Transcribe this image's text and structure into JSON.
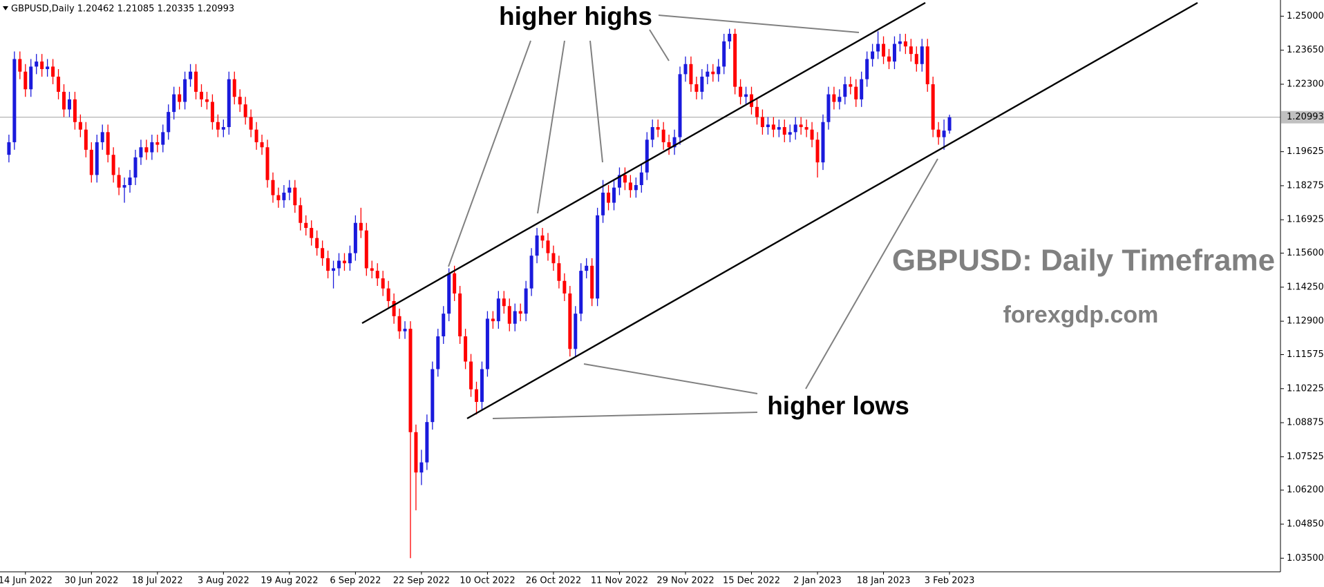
{
  "chart_data": {
    "type": "candlestick",
    "title": "GBPUSD,Daily 1.20462 1.21085 1.20335 1.20993",
    "annotations": [
      "higher highs",
      "higher lows",
      "GBPUSD: Daily Timeframe",
      "forexgdp.com"
    ],
    "bull_color": "#1a1adc",
    "bear_color": "#ff0000",
    "price_line": {
      "value": 1.20993,
      "label": "1.20993"
    },
    "ylim": [
      1.0296,
      1.2554
    ],
    "yticks": [
      {
        "value": 1.25,
        "label": "1.25000"
      },
      {
        "value": 1.2365,
        "label": "1.23650"
      },
      {
        "value": 1.223,
        "label": "1.22300"
      },
      {
        "value": 1.19625,
        "label": "1.19625"
      },
      {
        "value": 1.18275,
        "label": "1.18275"
      },
      {
        "value": 1.16925,
        "label": "1.16925"
      },
      {
        "value": 1.156,
        "label": "1.15600"
      },
      {
        "value": 1.1425,
        "label": "1.14250"
      },
      {
        "value": 1.129,
        "label": "1.12900"
      },
      {
        "value": 1.11575,
        "label": "1.11575"
      },
      {
        "value": 1.10225,
        "label": "1.10225"
      },
      {
        "value": 1.08875,
        "label": "1.08875"
      },
      {
        "value": 1.07525,
        "label": "1.07525"
      },
      {
        "value": 1.062,
        "label": "1.06200"
      },
      {
        "value": 1.0485,
        "label": "1.04850"
      },
      {
        "value": 1.035,
        "label": "1.03500"
      }
    ],
    "categories": [
      null,
      null,
      null,
      "14 Jun 2022",
      null,
      null,
      null,
      null,
      null,
      null,
      null,
      null,
      null,
      null,
      null,
      "30 Jun 2022",
      null,
      null,
      null,
      null,
      null,
      null,
      null,
      null,
      null,
      null,
      null,
      "18 Jul 2022",
      null,
      null,
      null,
      null,
      null,
      null,
      null,
      null,
      null,
      null,
      null,
      "3 Aug 2022",
      null,
      null,
      null,
      null,
      null,
      null,
      null,
      null,
      null,
      null,
      null,
      "19 Aug 2022",
      null,
      null,
      null,
      null,
      null,
      null,
      null,
      null,
      null,
      null,
      null,
      "6 Sep 2022",
      null,
      null,
      null,
      null,
      null,
      null,
      null,
      null,
      null,
      null,
      null,
      "22 Sep 2022",
      null,
      null,
      null,
      null,
      null,
      null,
      null,
      null,
      null,
      null,
      null,
      "10 Oct 2022",
      null,
      null,
      null,
      null,
      null,
      null,
      null,
      null,
      null,
      null,
      null,
      "26 Oct 2022",
      null,
      null,
      null,
      null,
      null,
      null,
      null,
      null,
      null,
      null,
      null,
      "11 Nov 2022",
      null,
      null,
      null,
      null,
      null,
      null,
      null,
      null,
      null,
      null,
      null,
      "29 Nov 2022",
      null,
      null,
      null,
      null,
      null,
      null,
      null,
      null,
      null,
      null,
      null,
      "15 Dec 2022",
      null,
      null,
      null,
      null,
      null,
      null,
      null,
      null,
      null,
      null,
      null,
      "2 Jan 2023",
      null,
      null,
      null,
      null,
      null,
      null,
      null,
      null,
      null,
      null,
      null,
      "18 Jan 2023",
      null,
      null,
      null,
      null,
      null,
      null,
      null,
      null,
      null,
      null,
      null,
      "3 Feb 2023"
    ],
    "candles": [
      [
        1.195,
        1.203,
        1.192,
        1.2
      ],
      [
        1.2,
        1.236,
        1.197,
        1.233
      ],
      [
        1.233,
        1.236,
        1.225,
        1.228
      ],
      [
        1.228,
        1.231,
        1.218,
        1.221
      ],
      [
        1.221,
        1.233,
        1.218,
        1.23
      ],
      [
        1.23,
        1.235,
        1.227,
        1.232
      ],
      [
        1.232,
        1.235,
        1.226,
        1.229
      ],
      [
        1.229,
        1.233,
        1.226,
        1.23
      ],
      [
        1.23,
        1.233,
        1.223,
        1.226
      ],
      [
        1.226,
        1.229,
        1.217,
        1.22
      ],
      [
        1.22,
        1.223,
        1.21,
        1.213
      ],
      [
        1.213,
        1.22,
        1.21,
        1.217
      ],
      [
        1.217,
        1.22,
        1.205,
        1.208
      ],
      [
        1.208,
        1.211,
        1.202,
        1.205
      ],
      [
        1.205,
        1.208,
        1.194,
        1.197
      ],
      [
        1.197,
        1.2,
        1.184,
        1.187
      ],
      [
        1.187,
        1.203,
        1.184,
        1.2
      ],
      [
        1.2,
        1.207,
        1.197,
        1.204
      ],
      [
        1.204,
        1.207,
        1.192,
        1.195
      ],
      [
        1.195,
        1.198,
        1.184,
        1.187
      ],
      [
        1.187,
        1.19,
        1.179,
        1.182
      ],
      [
        1.182,
        1.186,
        1.176,
        1.183
      ],
      [
        1.183,
        1.189,
        1.18,
        1.186
      ],
      [
        1.186,
        1.197,
        1.183,
        1.194
      ],
      [
        1.194,
        1.201,
        1.191,
        1.198
      ],
      [
        1.198,
        1.201,
        1.193,
        1.196
      ],
      [
        1.196,
        1.203,
        1.193,
        1.2
      ],
      [
        1.2,
        1.203,
        1.196,
        1.199
      ],
      [
        1.199,
        1.207,
        1.196,
        1.204
      ],
      [
        1.204,
        1.215,
        1.201,
        1.212
      ],
      [
        1.212,
        1.222,
        1.209,
        1.219
      ],
      [
        1.219,
        1.222,
        1.213,
        1.216
      ],
      [
        1.216,
        1.228,
        1.213,
        1.225
      ],
      [
        1.225,
        1.231,
        1.222,
        1.228
      ],
      [
        1.228,
        1.231,
        1.217,
        1.22
      ],
      [
        1.22,
        1.223,
        1.214,
        1.217
      ],
      [
        1.217,
        1.22,
        1.213,
        1.216
      ],
      [
        1.216,
        1.219,
        1.205,
        1.208
      ],
      [
        1.208,
        1.211,
        1.202,
        1.205
      ],
      [
        1.205,
        1.209,
        1.202,
        1.206
      ],
      [
        1.206,
        1.228,
        1.203,
        1.225
      ],
      [
        1.225,
        1.228,
        1.215,
        1.218
      ],
      [
        1.218,
        1.221,
        1.212,
        1.215
      ],
      [
        1.215,
        1.218,
        1.207,
        1.21
      ],
      [
        1.21,
        1.213,
        1.202,
        1.205
      ],
      [
        1.205,
        1.208,
        1.197,
        1.2
      ],
      [
        1.2,
        1.203,
        1.195,
        1.198
      ],
      [
        1.198,
        1.201,
        1.182,
        1.185
      ],
      [
        1.185,
        1.188,
        1.176,
        1.179
      ],
      [
        1.179,
        1.182,
        1.174,
        1.177
      ],
      [
        1.177,
        1.183,
        1.174,
        1.18
      ],
      [
        1.18,
        1.185,
        1.177,
        1.182
      ],
      [
        1.182,
        1.185,
        1.172,
        1.175
      ],
      [
        1.175,
        1.178,
        1.165,
        1.168
      ],
      [
        1.168,
        1.171,
        1.163,
        1.166
      ],
      [
        1.166,
        1.169,
        1.159,
        1.162
      ],
      [
        1.162,
        1.165,
        1.155,
        1.158
      ],
      [
        1.158,
        1.161,
        1.151,
        1.154
      ],
      [
        1.154,
        1.157,
        1.146,
        1.149
      ],
      [
        1.149,
        1.153,
        1.142,
        1.15
      ],
      [
        1.15,
        1.156,
        1.147,
        1.153
      ],
      [
        1.153,
        1.156,
        1.149,
        1.152
      ],
      [
        1.152,
        1.159,
        1.149,
        1.156
      ],
      [
        1.156,
        1.171,
        1.153,
        1.168
      ],
      [
        1.168,
        1.174,
        1.162,
        1.165
      ],
      [
        1.165,
        1.168,
        1.147,
        1.15
      ],
      [
        1.15,
        1.153,
        1.146,
        1.149
      ],
      [
        1.149,
        1.152,
        1.143,
        1.146
      ],
      [
        1.146,
        1.149,
        1.139,
        1.142
      ],
      [
        1.142,
        1.145,
        1.134,
        1.137
      ],
      [
        1.137,
        1.14,
        1.128,
        1.131
      ],
      [
        1.131,
        1.134,
        1.122,
        1.125
      ],
      [
        1.125,
        1.129,
        1.122,
        1.126
      ],
      [
        1.126,
        1.129,
        1.035,
        1.085
      ],
      [
        1.085,
        1.088,
        1.054,
        1.069
      ],
      [
        1.069,
        1.078,
        1.064,
        1.073
      ],
      [
        1.073,
        1.092,
        1.07,
        1.089
      ],
      [
        1.089,
        1.113,
        1.086,
        1.11
      ],
      [
        1.11,
        1.126,
        1.107,
        1.123
      ],
      [
        1.123,
        1.135,
        1.12,
        1.132
      ],
      [
        1.132,
        1.15,
        1.129,
        1.148
      ],
      [
        1.148,
        1.151,
        1.137,
        1.14
      ],
      [
        1.14,
        1.143,
        1.12,
        1.123
      ],
      [
        1.123,
        1.126,
        1.11,
        1.113
      ],
      [
        1.113,
        1.116,
        1.099,
        1.102
      ],
      [
        1.102,
        1.105,
        1.092,
        1.097
      ],
      [
        1.097,
        1.113,
        1.094,
        1.11
      ],
      [
        1.11,
        1.133,
        1.107,
        1.13
      ],
      [
        1.13,
        1.133,
        1.126,
        1.129
      ],
      [
        1.129,
        1.141,
        1.126,
        1.138
      ],
      [
        1.138,
        1.141,
        1.132,
        1.135
      ],
      [
        1.135,
        1.138,
        1.125,
        1.128
      ],
      [
        1.128,
        1.136,
        1.125,
        1.133
      ],
      [
        1.133,
        1.136,
        1.129,
        1.132
      ],
      [
        1.132,
        1.145,
        1.129,
        1.142
      ],
      [
        1.142,
        1.158,
        1.139,
        1.155
      ],
      [
        1.155,
        1.166,
        1.152,
        1.163
      ],
      [
        1.163,
        1.166,
        1.158,
        1.161
      ],
      [
        1.161,
        1.164,
        1.153,
        1.156
      ],
      [
        1.156,
        1.159,
        1.149,
        1.152
      ],
      [
        1.152,
        1.155,
        1.142,
        1.145
      ],
      [
        1.145,
        1.148,
        1.137,
        1.14
      ],
      [
        1.14,
        1.143,
        1.115,
        1.118
      ],
      [
        1.118,
        1.135,
        1.115,
        1.132
      ],
      [
        1.132,
        1.152,
        1.129,
        1.149
      ],
      [
        1.149,
        1.154,
        1.146,
        1.151
      ],
      [
        1.151,
        1.154,
        1.135,
        1.138
      ],
      [
        1.138,
        1.174,
        1.135,
        1.171
      ],
      [
        1.171,
        1.185,
        1.168,
        1.18
      ],
      [
        1.18,
        1.183,
        1.173,
        1.176
      ],
      [
        1.176,
        1.185,
        1.173,
        1.182
      ],
      [
        1.182,
        1.19,
        1.179,
        1.187
      ],
      [
        1.187,
        1.19,
        1.181,
        1.184
      ],
      [
        1.184,
        1.187,
        1.178,
        1.181
      ],
      [
        1.181,
        1.186,
        1.178,
        1.183
      ],
      [
        1.183,
        1.191,
        1.18,
        1.188
      ],
      [
        1.188,
        1.204,
        1.185,
        1.201
      ],
      [
        1.201,
        1.209,
        1.198,
        1.206
      ],
      [
        1.206,
        1.209,
        1.202,
        1.205
      ],
      [
        1.205,
        1.208,
        1.197,
        1.2
      ],
      [
        1.2,
        1.203,
        1.195,
        1.198
      ],
      [
        1.198,
        1.205,
        1.195,
        1.202
      ],
      [
        1.202,
        1.23,
        1.199,
        1.227
      ],
      [
        1.227,
        1.234,
        1.224,
        1.231
      ],
      [
        1.231,
        1.234,
        1.22,
        1.223
      ],
      [
        1.223,
        1.226,
        1.217,
        1.22
      ],
      [
        1.22,
        1.229,
        1.217,
        1.226
      ],
      [
        1.226,
        1.231,
        1.223,
        1.228
      ],
      [
        1.228,
        1.231,
        1.224,
        1.227
      ],
      [
        1.227,
        1.233,
        1.224,
        1.23
      ],
      [
        1.23,
        1.243,
        1.227,
        1.24
      ],
      [
        1.24,
        1.245,
        1.237,
        1.243
      ],
      [
        1.243,
        1.245,
        1.219,
        1.222
      ],
      [
        1.222,
        1.225,
        1.215,
        1.218
      ],
      [
        1.218,
        1.222,
        1.215,
        1.219
      ],
      [
        1.219,
        1.222,
        1.211,
        1.214
      ],
      [
        1.214,
        1.217,
        1.207,
        1.21
      ],
      [
        1.21,
        1.213,
        1.203,
        1.206
      ],
      [
        1.206,
        1.21,
        1.203,
        1.207
      ],
      [
        1.207,
        1.21,
        1.202,
        1.205
      ],
      [
        1.205,
        1.209,
        1.202,
        1.206
      ],
      [
        1.206,
        1.209,
        1.2,
        1.203
      ],
      [
        1.203,
        1.207,
        1.2,
        1.204
      ],
      [
        1.204,
        1.21,
        1.201,
        1.207
      ],
      [
        1.207,
        1.21,
        1.203,
        1.206
      ],
      [
        1.206,
        1.209,
        1.202,
        1.205
      ],
      [
        1.205,
        1.208,
        1.198,
        1.201
      ],
      [
        1.201,
        1.204,
        1.186,
        1.192
      ],
      [
        1.192,
        1.211,
        1.189,
        1.208
      ],
      [
        1.208,
        1.222,
        1.205,
        1.219
      ],
      [
        1.219,
        1.222,
        1.213,
        1.216
      ],
      [
        1.216,
        1.221,
        1.213,
        1.218
      ],
      [
        1.218,
        1.226,
        1.215,
        1.223
      ],
      [
        1.223,
        1.226,
        1.219,
        1.222
      ],
      [
        1.222,
        1.225,
        1.214,
        1.217
      ],
      [
        1.217,
        1.228,
        1.214,
        1.225
      ],
      [
        1.225,
        1.236,
        1.222,
        1.233
      ],
      [
        1.233,
        1.239,
        1.23,
        1.236
      ],
      [
        1.236,
        1.244,
        1.233,
        1.239
      ],
      [
        1.239,
        1.242,
        1.231,
        1.234
      ],
      [
        1.234,
        1.237,
        1.229,
        1.232
      ],
      [
        1.232,
        1.242,
        1.229,
        1.239
      ],
      [
        1.239,
        1.243,
        1.236,
        1.24
      ],
      [
        1.24,
        1.243,
        1.235,
        1.238
      ],
      [
        1.238,
        1.241,
        1.232,
        1.235
      ],
      [
        1.235,
        1.238,
        1.228,
        1.231
      ],
      [
        1.231,
        1.241,
        1.228,
        1.238
      ],
      [
        1.238,
        1.241,
        1.22,
        1.223
      ],
      [
        1.223,
        1.226,
        1.202,
        1.205
      ],
      [
        1.205,
        1.208,
        1.199,
        1.202
      ],
      [
        1.202,
        1.209,
        1.197,
        1.2046
      ],
      [
        1.2046,
        1.2109,
        1.2034,
        1.2099
      ]
    ]
  }
}
